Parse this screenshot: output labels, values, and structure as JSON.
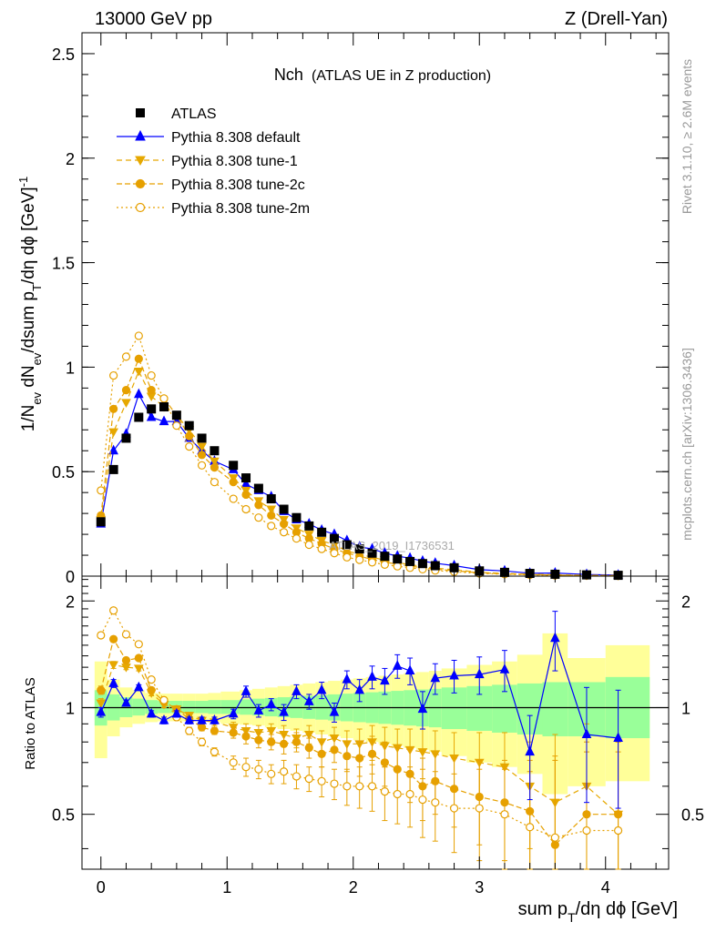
{
  "header": {
    "left": "13000 GeV pp",
    "right": "Z (Drell-Yan)"
  },
  "side_labels": {
    "rivet": "Rivet 3.1.10, ≥ 2.6M events",
    "mcplots": "mcplots.cern.ch [arXiv:1306.3436]"
  },
  "chart_data": [
    {
      "type": "scatter",
      "panel": "main",
      "title": "Nch",
      "subtitle": "(ATLAS UE in Z production)",
      "watermark": "ATLAS_2019_I1736531",
      "xlim": [
        -0.15,
        4.5
      ],
      "ylim": [
        0,
        2.6
      ],
      "yticks": [
        "0",
        "0.5",
        "1",
        "1.5",
        "2",
        "2.5"
      ],
      "xlabel": "sum p_T/dη dφ [GeV]",
      "ylabel": "1/N_ev dN_ev/dsum p_T/dη dφ [GeV]^-1",
      "legend_position": "top-left",
      "x": [
        0.0,
        0.1,
        0.2,
        0.3,
        0.4,
        0.5,
        0.6,
        0.7,
        0.8,
        0.9,
        1.05,
        1.15,
        1.25,
        1.35,
        1.45,
        1.55,
        1.65,
        1.75,
        1.85,
        1.95,
        2.05,
        2.15,
        2.25,
        2.35,
        2.45,
        2.55,
        2.65,
        2.8,
        3.0,
        3.2,
        3.4,
        3.6,
        3.85,
        4.1
      ],
      "series": [
        {
          "name": "ATLAS",
          "style": "data",
          "color": "#000000",
          "values": [
            0.26,
            0.51,
            0.66,
            0.76,
            0.8,
            0.81,
            0.77,
            0.72,
            0.66,
            0.6,
            0.53,
            0.47,
            0.42,
            0.37,
            0.32,
            0.28,
            0.24,
            0.21,
            0.18,
            0.15,
            0.13,
            0.11,
            0.095,
            0.082,
            0.07,
            0.06,
            0.05,
            0.04,
            0.025,
            0.018,
            0.013,
            0.009,
            0.006,
            0.004
          ]
        },
        {
          "name": "Pythia 8.308 default",
          "style": "mc-default",
          "color": "#0000ff",
          "values": [
            0.25,
            0.6,
            0.68,
            0.87,
            0.76,
            0.74,
            0.74,
            0.66,
            0.6,
            0.55,
            0.51,
            0.44,
            0.41,
            0.38,
            0.31,
            0.27,
            0.25,
            0.22,
            0.2,
            0.17,
            0.14,
            0.13,
            0.11,
            0.096,
            0.086,
            0.072,
            0.062,
            0.05,
            0.031,
            0.025,
            0.014,
            0.015,
            0.008,
            0.005
          ]
        },
        {
          "name": "Pythia 8.308 tune-1",
          "style": "mc-tune1",
          "color": "#e6a800",
          "values": [
            0.27,
            0.69,
            0.83,
            0.98,
            0.86,
            0.81,
            0.77,
            0.7,
            0.62,
            0.55,
            0.47,
            0.41,
            0.36,
            0.32,
            0.27,
            0.23,
            0.2,
            0.17,
            0.15,
            0.12,
            0.105,
            0.09,
            0.076,
            0.065,
            0.055,
            0.046,
            0.038,
            0.031,
            0.018,
            0.013,
            0.009,
            0.006,
            0.004,
            0.003
          ]
        },
        {
          "name": "Pythia 8.308 tune-2c",
          "style": "mc-tune2c",
          "color": "#e6a000",
          "values": [
            0.29,
            0.8,
            0.89,
            1.04,
            0.89,
            0.85,
            0.77,
            0.67,
            0.58,
            0.52,
            0.45,
            0.39,
            0.34,
            0.29,
            0.25,
            0.21,
            0.18,
            0.155,
            0.13,
            0.11,
            0.095,
            0.08,
            0.067,
            0.057,
            0.048,
            0.04,
            0.033,
            0.026,
            0.016,
            0.011,
            0.008,
            0.005,
            0.003,
            0.002
          ]
        },
        {
          "name": "Pythia 8.308 tune-2m",
          "style": "mc-tune2m",
          "color": "#e6a000",
          "values": [
            0.41,
            0.96,
            1.05,
            1.15,
            0.96,
            0.85,
            0.72,
            0.62,
            0.53,
            0.45,
            0.37,
            0.32,
            0.28,
            0.24,
            0.21,
            0.18,
            0.15,
            0.13,
            0.11,
            0.09,
            0.078,
            0.066,
            0.055,
            0.047,
            0.04,
            0.033,
            0.027,
            0.021,
            0.013,
            0.009,
            0.006,
            0.004,
            0.003,
            0.002
          ]
        }
      ]
    },
    {
      "type": "scatter",
      "panel": "ratio",
      "ylabel": "Ratio to ATLAS",
      "xlabel": "sum p_T/dη dφ [GeV]",
      "xlim": [
        -0.15,
        4.5
      ],
      "ylim": [
        0.35,
        2.35
      ],
      "yticks": [
        "0.5",
        "1",
        "2"
      ],
      "xticks": [
        "0",
        "1",
        "2",
        "3",
        "4"
      ],
      "reference_line": 1,
      "x": [
        0.0,
        0.1,
        0.2,
        0.3,
        0.4,
        0.5,
        0.6,
        0.7,
        0.8,
        0.9,
        1.05,
        1.15,
        1.25,
        1.35,
        1.45,
        1.55,
        1.65,
        1.75,
        1.85,
        1.95,
        2.05,
        2.15,
        2.25,
        2.35,
        2.45,
        2.55,
        2.65,
        2.8,
        3.0,
        3.2,
        3.4,
        3.6,
        3.85,
        4.1
      ],
      "uncertainty_bands": {
        "edges": [
          -0.05,
          0.05,
          0.15,
          0.25,
          0.35,
          0.45,
          0.55,
          0.65,
          0.75,
          0.85,
          0.95,
          1.1,
          1.2,
          1.3,
          1.4,
          1.5,
          1.6,
          1.7,
          1.8,
          1.9,
          2.0,
          2.1,
          2.2,
          2.3,
          2.4,
          2.5,
          2.6,
          2.7,
          2.9,
          3.1,
          3.3,
          3.5,
          3.7,
          4.0,
          4.35
        ],
        "inner_low": [
          0.89,
          0.92,
          0.94,
          0.95,
          0.96,
          0.965,
          0.965,
          0.965,
          0.965,
          0.96,
          0.96,
          0.955,
          0.95,
          0.945,
          0.94,
          0.935,
          0.93,
          0.925,
          0.92,
          0.915,
          0.91,
          0.905,
          0.9,
          0.895,
          0.89,
          0.885,
          0.88,
          0.87,
          0.86,
          0.85,
          0.84,
          0.83,
          0.83,
          0.82
        ],
        "inner_high": [
          1.12,
          1.09,
          1.07,
          1.06,
          1.05,
          1.045,
          1.045,
          1.045,
          1.045,
          1.05,
          1.05,
          1.055,
          1.06,
          1.065,
          1.07,
          1.075,
          1.08,
          1.085,
          1.09,
          1.095,
          1.1,
          1.105,
          1.11,
          1.115,
          1.12,
          1.125,
          1.13,
          1.14,
          1.15,
          1.16,
          1.17,
          1.18,
          1.18,
          1.22
        ],
        "outer_low": [
          0.72,
          0.83,
          0.88,
          0.9,
          0.91,
          0.915,
          0.915,
          0.915,
          0.915,
          0.91,
          0.9,
          0.895,
          0.89,
          0.88,
          0.87,
          0.86,
          0.85,
          0.84,
          0.83,
          0.82,
          0.81,
          0.8,
          0.79,
          0.78,
          0.77,
          0.76,
          0.75,
          0.73,
          0.7,
          0.68,
          0.65,
          0.57,
          0.6,
          0.62
        ],
        "outer_high": [
          1.35,
          1.2,
          1.14,
          1.12,
          1.1,
          1.095,
          1.095,
          1.095,
          1.095,
          1.1,
          1.11,
          1.12,
          1.13,
          1.14,
          1.15,
          1.16,
          1.17,
          1.18,
          1.19,
          1.2,
          1.21,
          1.22,
          1.23,
          1.24,
          1.25,
          1.26,
          1.27,
          1.29,
          1.32,
          1.35,
          1.41,
          1.62,
          1.38,
          1.5
        ],
        "inner_color": "#99ff99",
        "outer_color": "#ffff99"
      },
      "series": [
        {
          "name": "Pythia 8.308 default",
          "color": "#0000ff",
          "values": [
            0.97,
            1.17,
            1.03,
            1.14,
            0.96,
            0.92,
            0.96,
            0.92,
            0.92,
            0.92,
            0.96,
            1.11,
            0.98,
            1.02,
            0.97,
            1.11,
            1.04,
            1.12,
            0.97,
            1.2,
            1.12,
            1.22,
            1.19,
            1.31,
            1.27,
            0.99,
            1.21,
            1.23,
            1.24,
            1.28,
            0.75,
            1.57,
            0.84,
            0.82
          ],
          "err": [
            0.03,
            0.03,
            0.02,
            0.02,
            0.02,
            0.02,
            0.02,
            0.02,
            0.02,
            0.02,
            0.03,
            0.04,
            0.04,
            0.04,
            0.05,
            0.05,
            0.05,
            0.06,
            0.06,
            0.07,
            0.08,
            0.09,
            0.1,
            0.1,
            0.11,
            0.12,
            0.12,
            0.13,
            0.15,
            0.17,
            0.2,
            0.3,
            0.3,
            0.3
          ]
        },
        {
          "name": "Pythia 8.308 tune-1",
          "color": "#e6a800",
          "values": [
            1.03,
            1.32,
            1.3,
            1.29,
            1.1,
            1.02,
            0.99,
            0.95,
            0.92,
            0.91,
            0.88,
            0.86,
            0.85,
            0.86,
            0.84,
            0.82,
            0.84,
            0.8,
            0.82,
            0.79,
            0.79,
            0.8,
            0.78,
            0.77,
            0.76,
            0.75,
            0.74,
            0.72,
            0.7,
            0.68,
            0.6,
            0.54,
            0.6,
            0.5
          ],
          "err": [
            0.03,
            0.03,
            0.02,
            0.02,
            0.02,
            0.02,
            0.02,
            0.02,
            0.02,
            0.02,
            0.03,
            0.04,
            0.04,
            0.04,
            0.05,
            0.05,
            0.05,
            0.06,
            0.06,
            0.07,
            0.08,
            0.09,
            0.1,
            0.1,
            0.11,
            0.12,
            0.12,
            0.13,
            0.15,
            0.17,
            0.2,
            0.3,
            0.3,
            0.3
          ]
        },
        {
          "name": "Pythia 8.308 tune-2c",
          "color": "#e6a000",
          "values": [
            1.12,
            1.56,
            1.36,
            1.38,
            1.12,
            1.04,
            0.99,
            0.93,
            0.88,
            0.86,
            0.85,
            0.83,
            0.81,
            0.8,
            0.79,
            0.8,
            0.77,
            0.74,
            0.76,
            0.73,
            0.72,
            0.74,
            0.7,
            0.67,
            0.65,
            0.6,
            0.62,
            0.59,
            0.56,
            0.54,
            0.51,
            0.41,
            0.5,
            0.5
          ],
          "err": [
            0.03,
            0.03,
            0.02,
            0.02,
            0.02,
            0.02,
            0.02,
            0.02,
            0.02,
            0.02,
            0.03,
            0.04,
            0.04,
            0.04,
            0.05,
            0.05,
            0.05,
            0.06,
            0.06,
            0.07,
            0.08,
            0.09,
            0.1,
            0.1,
            0.11,
            0.12,
            0.12,
            0.13,
            0.15,
            0.17,
            0.2,
            0.3,
            0.3,
            0.3
          ]
        },
        {
          "name": "Pythia 8.308 tune-2m",
          "color": "#e6a000",
          "values": [
            1.6,
            1.88,
            1.61,
            1.51,
            1.2,
            1.05,
            0.94,
            0.86,
            0.8,
            0.75,
            0.7,
            0.68,
            0.67,
            0.65,
            0.66,
            0.64,
            0.63,
            0.62,
            0.61,
            0.6,
            0.6,
            0.6,
            0.58,
            0.57,
            0.57,
            0.55,
            0.54,
            0.52,
            0.52,
            0.5,
            0.46,
            0.43,
            0.45,
            0.45
          ],
          "err": [
            0.03,
            0.03,
            0.02,
            0.02,
            0.02,
            0.02,
            0.02,
            0.02,
            0.02,
            0.02,
            0.03,
            0.04,
            0.04,
            0.04,
            0.05,
            0.05,
            0.05,
            0.06,
            0.06,
            0.07,
            0.08,
            0.09,
            0.1,
            0.1,
            0.11,
            0.12,
            0.12,
            0.13,
            0.15,
            0.17,
            0.2,
            0.3,
            0.3,
            0.3
          ]
        }
      ]
    }
  ]
}
